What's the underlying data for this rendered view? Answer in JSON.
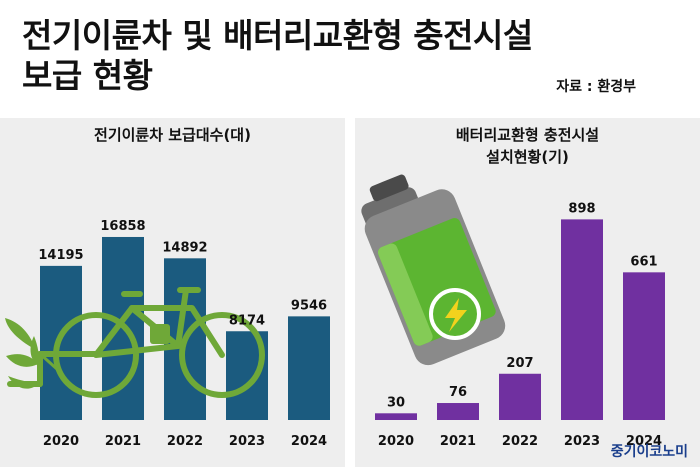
{
  "title_lines": [
    "전기이륜차 및 배터리교환형 충전시설",
    "보급 현황"
  ],
  "source": "자료 : 환경부",
  "logo": "중기이코노미",
  "colors": {
    "left_bar": "#1b5b7f",
    "right_bar": "#7030a0",
    "panel": "#eeeeee",
    "bike": "#6fa838"
  },
  "icons": [
    "bicycle-icon",
    "leaf-icon",
    "battery-icon",
    "lightning-icon"
  ],
  "chart_data": [
    {
      "type": "bar",
      "title_lines": [
        "전기이륜차 보급대수(대)"
      ],
      "categories": [
        "2020",
        "2021",
        "2022",
        "2023",
        "2024"
      ],
      "values": [
        14195,
        16858,
        14892,
        8174,
        9546
      ],
      "value_labels": [
        "14195",
        "16858",
        "14892",
        "8174",
        "9546"
      ],
      "ylim": [
        0,
        17500
      ],
      "grid": false
    },
    {
      "type": "bar",
      "title_lines": [
        "배터리교환형 충전시설",
        "설치현황(기)"
      ],
      "categories": [
        "2020",
        "2021",
        "2022",
        "2023",
        "2024"
      ],
      "values": [
        30,
        76,
        207,
        898,
        661
      ],
      "value_labels": [
        "30",
        "76",
        "207",
        "898",
        "661"
      ],
      "ylim": [
        0,
        940
      ],
      "grid": false
    }
  ]
}
